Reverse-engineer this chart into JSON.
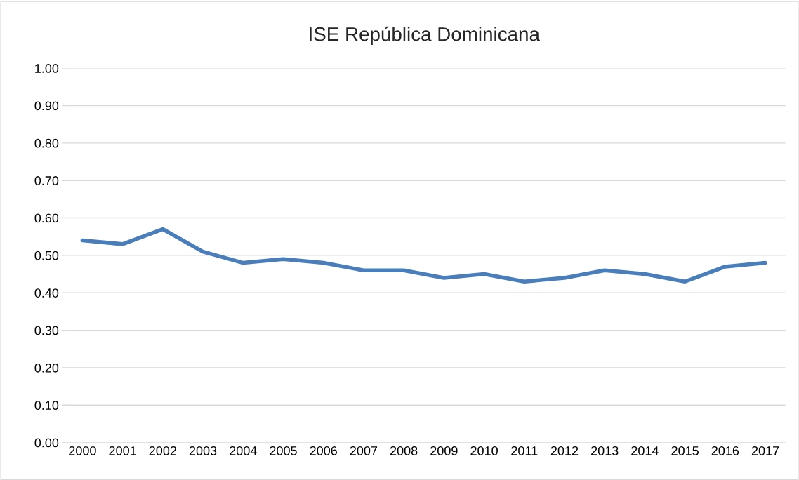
{
  "chart_data": {
    "type": "line",
    "title": "ISE República Dominicana",
    "categories": [
      "2000",
      "2001",
      "2002",
      "2003",
      "2004",
      "2005",
      "2006",
      "2007",
      "2008",
      "2009",
      "2010",
      "2011",
      "2012",
      "2013",
      "2014",
      "2015",
      "2016",
      "2017"
    ],
    "series": [
      {
        "color": "#4a7ebb",
        "values": [
          0.54,
          0.53,
          0.57,
          0.51,
          0.48,
          0.49,
          0.48,
          0.46,
          0.46,
          0.44,
          0.45,
          0.43,
          0.44,
          0.46,
          0.45,
          0.43,
          0.47,
          0.48
        ]
      }
    ],
    "ylim": [
      0,
      1
    ],
    "yticks": [
      {
        "value": 0,
        "label": "0.00"
      },
      {
        "value": 0.1,
        "label": "0.10"
      },
      {
        "value": 0.2,
        "label": "0.20"
      },
      {
        "value": 0.3,
        "label": "0.30"
      },
      {
        "value": 0.4,
        "label": "0.40"
      },
      {
        "value": 0.5,
        "label": "0.50"
      },
      {
        "value": 0.6,
        "label": "0.60"
      },
      {
        "value": 0.7,
        "label": "0.70"
      },
      {
        "value": 0.8,
        "label": "0.80"
      },
      {
        "value": 0.9,
        "label": "0.90"
      },
      {
        "value": 1.0,
        "label": "1.00"
      }
    ],
    "grid": "y",
    "legend": false,
    "marker": "none",
    "line_style": "solid"
  }
}
